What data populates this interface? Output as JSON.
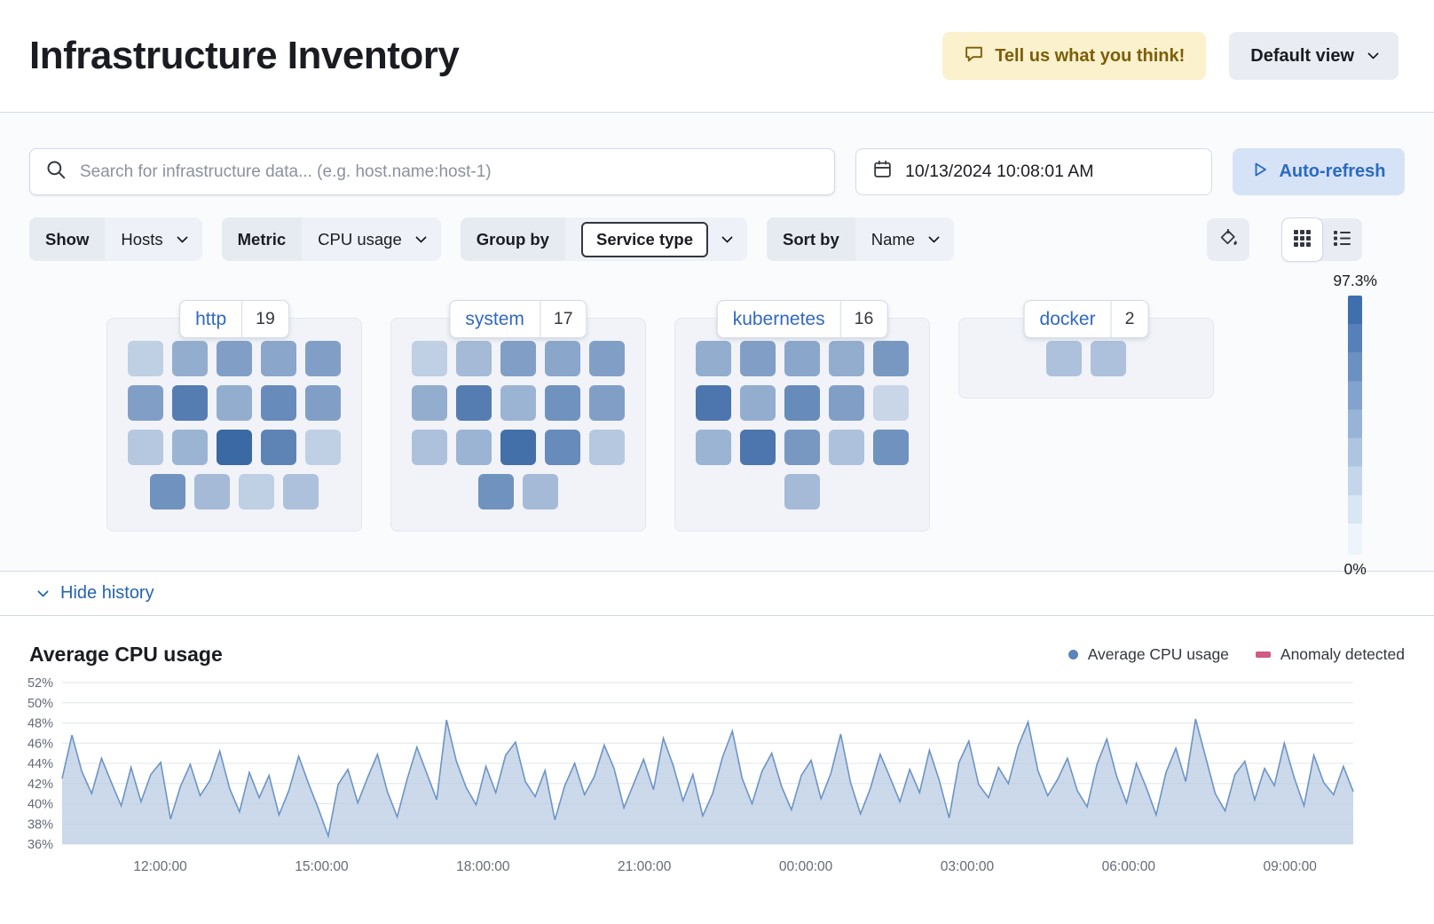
{
  "header": {
    "title": "Infrastructure Inventory",
    "feedback_label": "Tell us what you think!",
    "view_label": "Default view"
  },
  "toolbar": {
    "search_placeholder": "Search for infrastructure data... (e.g. host.name:host-1)",
    "datetime": "10/13/2024 10:08:01 AM",
    "auto_refresh_label": "Auto-refresh"
  },
  "filters": {
    "show_label": "Show",
    "show_value": "Hosts",
    "metric_label": "Metric",
    "metric_value": "CPU usage",
    "group_by_label": "Group by",
    "group_by_value": "Service type",
    "sort_by_label": "Sort by",
    "sort_by_value": "Name"
  },
  "scale": {
    "max": "97.3%",
    "min": "0%"
  },
  "groups": [
    {
      "name": "http",
      "count": 19,
      "tiles": [
        0.2,
        0.45,
        0.55,
        0.5,
        0.55,
        0.55,
        0.8,
        0.45,
        0.7,
        0.55,
        0.25,
        0.4,
        0.95,
        0.75,
        0.2,
        0.65,
        0.35,
        0.2,
        0.3
      ]
    },
    {
      "name": "system",
      "count": 17,
      "tiles": [
        0.2,
        0.35,
        0.55,
        0.5,
        0.55,
        0.45,
        0.8,
        0.4,
        0.65,
        0.55,
        0.3,
        0.4,
        0.9,
        0.7,
        0.25,
        0.65,
        0.35
      ]
    },
    {
      "name": "kubernetes",
      "count": 16,
      "tiles": [
        0.45,
        0.55,
        0.5,
        0.45,
        0.6,
        0.85,
        0.45,
        0.7,
        0.55,
        0.15,
        0.4,
        0.85,
        0.6,
        0.3,
        0.65,
        0.35
      ]
    },
    {
      "name": "docker",
      "count": 2,
      "tiles": [
        0.3,
        0.3
      ]
    }
  ],
  "history": {
    "toggle_label": "Hide history"
  },
  "chart_data": {
    "type": "area",
    "title": "Average CPU usage",
    "legend": [
      "Average CPU usage",
      "Anomaly detected"
    ],
    "y_unit": "%",
    "ylim": [
      36,
      52
    ],
    "y_ticks": [
      36,
      38,
      40,
      42,
      44,
      46,
      48,
      50,
      52
    ],
    "x_tick_labels": [
      "12:00:00",
      "15:00:00",
      "18:00:00",
      "21:00:00",
      "00:00:00",
      "03:00:00",
      "06:00:00",
      "09:00:00"
    ],
    "x_tick_positions": [
      0.076,
      0.201,
      0.326,
      0.451,
      0.576,
      0.701,
      0.826,
      0.951
    ],
    "grid": true,
    "colors": {
      "line": "#6d94c4",
      "fill": "#b9cce3",
      "dot": "#5b84ba",
      "anomaly": "#cf5b80"
    },
    "series": [
      {
        "name": "Average CPU usage",
        "values": [
          42.5,
          46.8,
          43.2,
          41.0,
          44.5,
          42.1,
          39.8,
          43.6,
          40.2,
          42.9,
          44.1,
          38.5,
          41.7,
          43.9,
          40.8,
          42.3,
          45.2,
          41.5,
          39.2,
          43.1,
          40.6,
          42.8,
          38.9,
          41.3,
          44.7,
          42.0,
          39.5,
          36.8,
          41.9,
          43.4,
          40.1,
          42.6,
          44.9,
          41.2,
          38.7,
          42.4,
          45.6,
          43.0,
          40.4,
          48.3,
          44.2,
          41.6,
          39.9,
          43.7,
          41.1,
          44.8,
          46.1,
          42.2,
          40.7,
          43.3,
          38.4,
          41.8,
          44.0,
          40.9,
          42.7,
          45.8,
          43.5,
          39.6,
          42.0,
          44.4,
          41.4,
          46.5,
          43.8,
          40.3,
          42.9,
          38.8,
          41.0,
          44.6,
          47.2,
          42.5,
          40.0,
          43.2,
          45.0,
          41.7,
          39.4,
          42.8,
          44.3,
          40.5,
          43.0,
          46.9,
          42.1,
          39.0,
          41.5,
          44.9,
          42.6,
          40.2,
          43.4,
          41.1,
          45.3,
          42.3,
          38.6,
          44.1,
          46.2,
          41.9,
          40.6,
          43.6,
          42.0,
          45.7,
          48.1,
          43.3,
          40.8,
          42.4,
          44.5,
          41.3,
          39.7,
          43.9,
          46.4,
          42.7,
          40.1,
          44.0,
          41.6,
          38.9,
          43.1,
          45.5,
          42.2,
          48.4,
          44.7,
          41.0,
          39.3,
          42.9,
          44.2,
          40.4,
          43.5,
          41.8,
          46.0,
          42.6,
          39.8,
          44.8,
          42.1,
          40.9,
          43.7,
          41.2
        ]
      }
    ],
    "anomalies": []
  }
}
